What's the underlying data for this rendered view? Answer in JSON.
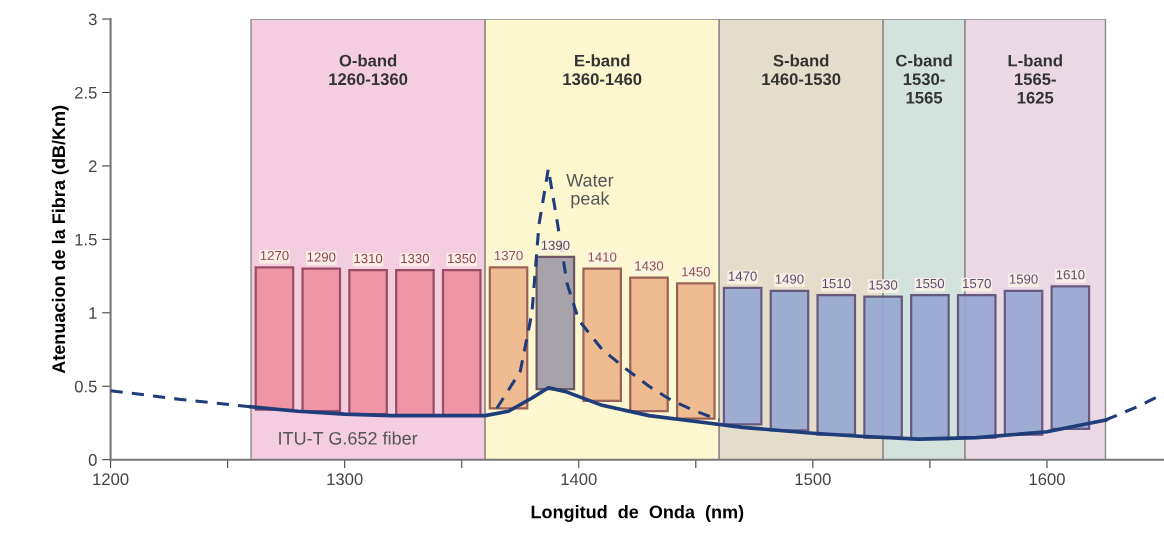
{
  "chart_data": {
    "type": "bar",
    "xlabel": "Longitud  de  Onda  (nm)",
    "ylabel": "Atenuacion de la Fibra (dB/Km)",
    "xlim": [
      1200,
      1650
    ],
    "ylim": [
      0,
      3
    ],
    "xticks": [
      1200,
      {
        "value": 1250,
        "label": null
      },
      1300,
      {
        "value": 1350,
        "label": null
      },
      1400,
      {
        "value": 1450,
        "label": null
      },
      1500,
      {
        "value": 1550,
        "label": null
      },
      1600
    ],
    "yticks": [
      0,
      0.5,
      1,
      1.5,
      2,
      2.5,
      3
    ],
    "grid": false,
    "bands": [
      {
        "axis": "x",
        "from": 1260,
        "to": 1360,
        "label": "O-band\n1260-1360",
        "color": "#f5cde0"
      },
      {
        "axis": "x",
        "from": 1360,
        "to": 1460,
        "label": "E-band\n1360-1460",
        "color": "#fdf7d0"
      },
      {
        "axis": "x",
        "from": 1460,
        "to": 1530,
        "label": "S-band\n1460-1530",
        "color": "#e5ddcb"
      },
      {
        "axis": "x",
        "from": 1530,
        "to": 1565,
        "label": "C-band\n1530-\n1565",
        "color": "#d3e2dc"
      },
      {
        "axis": "x",
        "from": 1565,
        "to": 1625,
        "label": "L-band\n1565-\n1625",
        "color": "#ead8e5"
      }
    ],
    "series": [
      {
        "x": [
          1270,
          1290,
          1310,
          1330,
          1350,
          1370,
          1390,
          1410,
          1430,
          1450,
          1470,
          1490,
          1510,
          1530,
          1550,
          1570,
          1590,
          1610
        ],
        "base": [
          0.34,
          0.33,
          0.31,
          0.3,
          0.3,
          0.35,
          0.48,
          0.4,
          0.33,
          0.28,
          0.24,
          0.2,
          0.17,
          0.15,
          0.14,
          0.15,
          0.17,
          0.21
        ],
        "values": [
          0.97,
          0.97,
          0.98,
          0.99,
          0.99,
          0.96,
          0.9,
          0.9,
          0.91,
          0.92,
          0.93,
          0.95,
          0.95,
          0.96,
          0.98,
          0.97,
          0.98,
          0.97
        ],
        "colors": [
          "#ef8f9f",
          "#ef8f9f",
          "#ef8f9f",
          "#ef8f9f",
          "#ef8f9f",
          "#eeb58a",
          "#9d9aa6",
          "#eeb58a",
          "#eeb58a",
          "#eeb58a",
          "#96a8d2",
          "#96a8d2",
          "#96a8d2",
          "#96a8d2",
          "#96a8d2",
          "#96a8d2",
          "#96a8d2",
          "#96a8d2"
        ]
      },
      {
        "type": "line",
        "color": "#1f3d7a",
        "line_style": "solid",
        "x": [
          1260,
          1280,
          1300,
          1320,
          1340,
          1360,
          1370,
          1380,
          1387,
          1395,
          1410,
          1430,
          1450,
          1470,
          1500,
          1520,
          1545,
          1570,
          1600,
          1625
        ],
        "values": [
          0.36,
          0.33,
          0.31,
          0.3,
          0.3,
          0.3,
          0.33,
          0.42,
          0.49,
          0.46,
          0.37,
          0.3,
          0.26,
          0.22,
          0.18,
          0.16,
          0.14,
          0.15,
          0.19,
          0.27
        ]
      },
      {
        "type": "line",
        "color": "#1f3d7a",
        "line_style": "dashed",
        "x": [
          1200,
          1230,
          1260
        ],
        "values": [
          0.47,
          0.41,
          0.36
        ]
      },
      {
        "type": "line",
        "color": "#1f3d7a",
        "line_style": "dashed",
        "x": [
          1625,
          1640,
          1650
        ],
        "values": [
          0.27,
          0.37,
          0.45
        ]
      },
      {
        "type": "line",
        "color": "#1f3d7a",
        "line_style": "dashed",
        "x": [
          1365,
          1375,
          1380,
          1383,
          1387,
          1391,
          1395,
          1400,
          1410,
          1420,
          1430,
          1440,
          1450,
          1460
        ],
        "values": [
          0.35,
          0.6,
          1.0,
          1.6,
          1.98,
          1.6,
          1.2,
          0.95,
          0.75,
          0.62,
          0.5,
          0.4,
          0.33,
          0.27
        ]
      }
    ],
    "annotations": [
      "Water\npeak",
      "ITU-T G.652 fiber",
      "1270",
      "1290",
      "1310",
      "1330",
      "1350",
      "1370",
      "1390",
      "1410",
      "1430",
      "1450",
      "1470",
      "1490",
      "1510",
      "1530",
      "1550",
      "1570",
      "1590",
      "1610"
    ]
  }
}
